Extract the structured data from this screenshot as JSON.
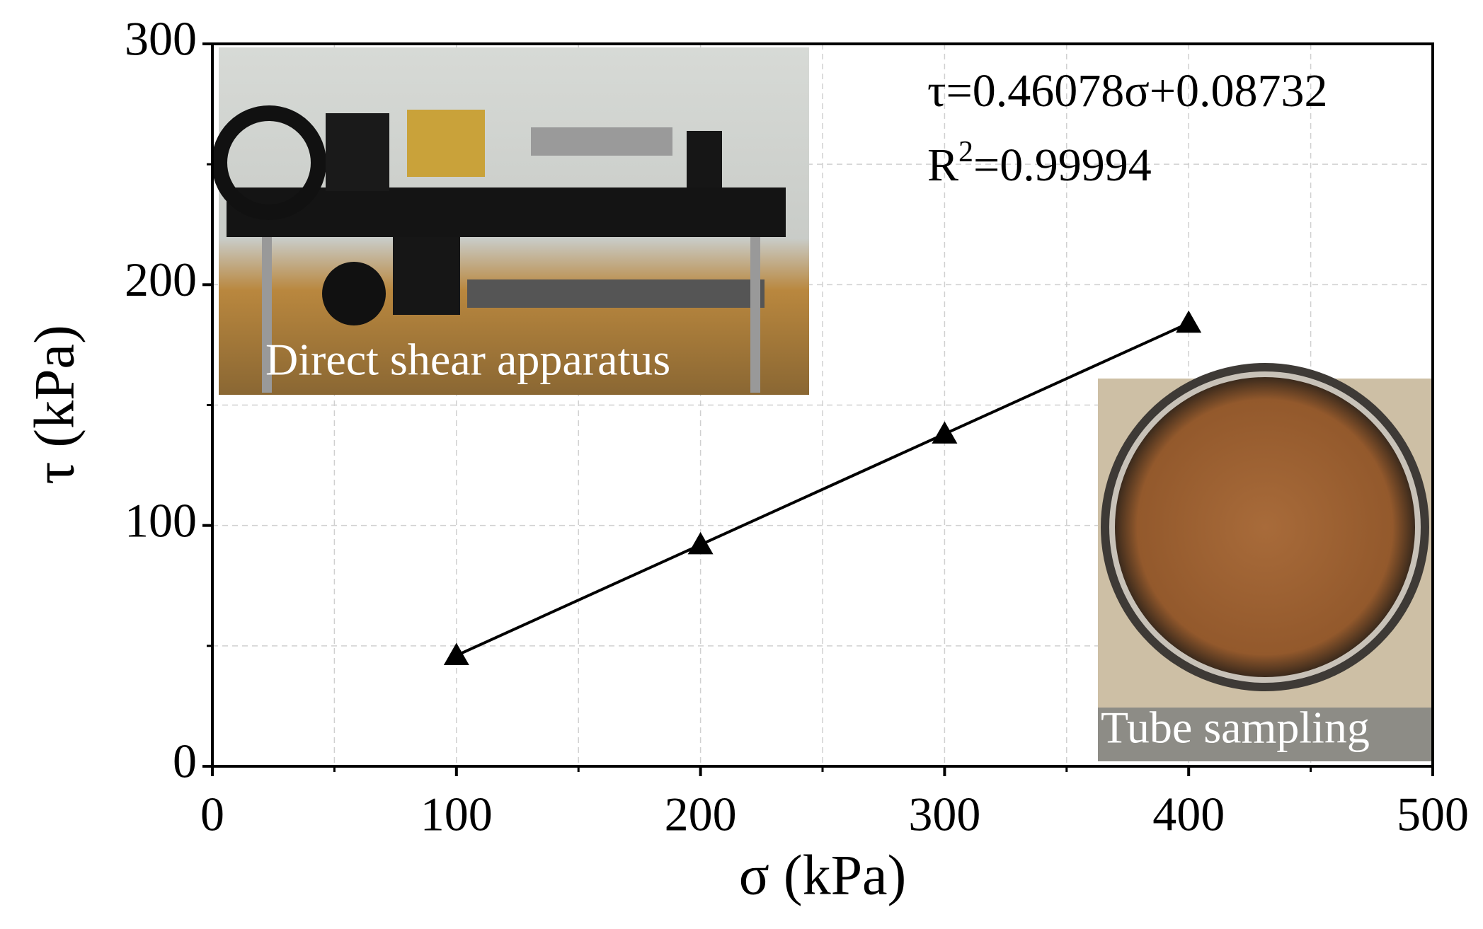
{
  "chart_data": {
    "type": "line",
    "x": [
      100,
      200,
      300,
      400
    ],
    "series": [
      {
        "color": "#000000",
        "values": [
          46,
          92,
          138,
          184
        ]
      }
    ],
    "x_label": "σ (kPa)",
    "y_label": "τ (kPa)",
    "xlim": [
      0,
      500
    ],
    "xticks": [
      0,
      100,
      200,
      300,
      400,
      500
    ],
    "xminorticks": [
      50,
      150,
      250,
      350,
      450
    ],
    "ylim": [
      0,
      300
    ],
    "yticks": [
      0,
      100,
      200,
      300
    ],
    "yminorticks": [
      50,
      150,
      250
    ],
    "grid": true,
    "equation": "τ=0.46078σ+0.08732",
    "r_squared": {
      "symbol": "R",
      "power": "2",
      "rest": "=0.99994"
    },
    "photos": [
      "Direct shear apparatus",
      "Tube sampling"
    ]
  }
}
